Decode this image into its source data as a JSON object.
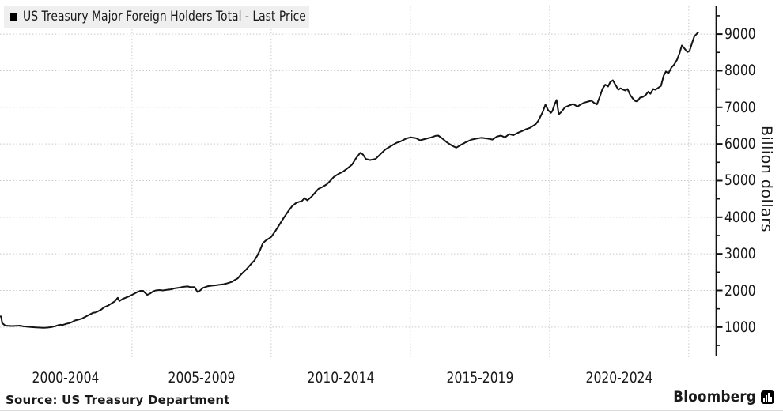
{
  "legend": {
    "label": "US Treasury Major Foreign Holders Total - Last Price",
    "swatch_color": "#000000"
  },
  "y_axis": {
    "title": "Billion dollars"
  },
  "footer": {
    "source": "Source: US Treasury Department",
    "brand": "Bloomberg"
  },
  "colors": {
    "line": "#141414",
    "grid": "#c8c8c8",
    "axis": "#111111",
    "legend_bg": "#efefef",
    "text": "#1a1a1a",
    "background": "#ffffff"
  },
  "chart_data": {
    "type": "line",
    "title": "US Treasury Major Foreign Holders Total - Last Price",
    "ylabel": "Billion dollars",
    "xlabel": "",
    "legend_position": "top-left",
    "grid": true,
    "xlim": [
      2000.26,
      2025.97
    ],
    "ylim": [
      220,
      9930
    ],
    "y_major_ticks": [
      1000,
      2000,
      3000,
      4000,
      5000,
      6000,
      7000,
      8000,
      9000
    ],
    "y_minor_ticks": [
      500,
      1500,
      2500,
      3500,
      4500,
      5500,
      6500,
      7500,
      8500,
      9500
    ],
    "x_gridline_years": [
      2005,
      2010,
      2015,
      2020,
      2025
    ],
    "x_tick_labels": [
      {
        "label": "2000-2004",
        "year": 2002.63
      },
      {
        "label": "2005-2009",
        "year": 2007.5
      },
      {
        "label": "2010-2014",
        "year": 2012.5
      },
      {
        "label": "2015-2019",
        "year": 2017.5
      },
      {
        "label": "2020-2024",
        "year": 2022.5
      }
    ],
    "series": [
      {
        "name": "US Treasury Major Foreign Holders Total - Last Price",
        "color": "#141414",
        "x": [
          2000.26,
          2000.3,
          2000.34,
          2000.45,
          2000.7,
          2000.97,
          2001.1,
          2001.25,
          2001.4,
          2001.55,
          2001.7,
          2001.82,
          2001.95,
          2002.1,
          2002.24,
          2002.35,
          2002.44,
          2002.5,
          2002.64,
          2002.75,
          2002.85,
          2002.95,
          2003.1,
          2003.2,
          2003.3,
          2003.4,
          2003.5,
          2003.6,
          2003.7,
          2003.8,
          2003.9,
          2004.0,
          2004.15,
          2004.25,
          2004.38,
          2004.49,
          2004.55,
          2004.65,
          2004.8,
          2004.9,
          2005.0,
          2005.1,
          2005.2,
          2005.3,
          2005.4,
          2005.55,
          2005.65,
          2005.75,
          2005.85,
          2006.0,
          2006.1,
          2006.25,
          2006.4,
          2006.55,
          2006.7,
          2006.85,
          2007.0,
          2007.1,
          2007.25,
          2007.35,
          2007.45,
          2007.55,
          2007.7,
          2007.85,
          2008.0,
          2008.15,
          2008.3,
          2008.45,
          2008.6,
          2008.7,
          2008.8,
          2008.9,
          2009.0,
          2009.1,
          2009.25,
          2009.4,
          2009.5,
          2009.6,
          2009.7,
          2009.8,
          2009.9,
          2010.0,
          2010.15,
          2010.3,
          2010.45,
          2010.6,
          2010.75,
          2010.9,
          2011.0,
          2011.1,
          2011.2,
          2011.3,
          2011.45,
          2011.6,
          2011.7,
          2011.85,
          2012.0,
          2012.1,
          2012.25,
          2012.4,
          2012.6,
          2012.75,
          2012.9,
          2013.05,
          2013.2,
          2013.3,
          2013.4,
          2013.55,
          2013.75,
          2013.95,
          2014.1,
          2014.3,
          2014.5,
          2014.65,
          2014.85,
          2015.0,
          2015.2,
          2015.35,
          2015.55,
          2015.75,
          2015.9,
          2016.0,
          2016.15,
          2016.3,
          2016.5,
          2016.65,
          2016.85,
          2017.0,
          2017.2,
          2017.4,
          2017.55,
          2017.75,
          2017.95,
          2018.1,
          2018.25,
          2018.4,
          2018.55,
          2018.7,
          2018.85,
          2019.0,
          2019.15,
          2019.3,
          2019.5,
          2019.6,
          2019.75,
          2019.85,
          2019.95,
          2020.05,
          2020.1,
          2020.18,
          2020.25,
          2020.33,
          2020.42,
          2020.55,
          2020.7,
          2020.85,
          2021.0,
          2021.1,
          2021.25,
          2021.4,
          2021.5,
          2021.6,
          2021.7,
          2021.8,
          2021.9,
          2022.0,
          2022.1,
          2022.18,
          2022.27,
          2022.38,
          2022.47,
          2022.55,
          2022.65,
          2022.72,
          2022.8,
          2022.9,
          2023.0,
          2023.08,
          2023.15,
          2023.25,
          2023.35,
          2023.45,
          2023.55,
          2023.62,
          2023.72,
          2023.8,
          2023.9,
          2024.0,
          2024.1,
          2024.18,
          2024.27,
          2024.38,
          2024.47,
          2024.58,
          2024.67,
          2024.75,
          2024.83,
          2024.95,
          2025.03,
          2025.12,
          2025.2,
          2025.28,
          2025.34
        ],
        "values": [
          1290,
          1290,
          1110,
          1040,
          1030,
          1040,
          1020,
          1010,
          1000,
          990,
          985,
          980,
          985,
          1000,
          1025,
          1050,
          1065,
          1055,
          1090,
          1110,
          1140,
          1180,
          1210,
          1230,
          1270,
          1310,
          1350,
          1390,
          1400,
          1440,
          1480,
          1540,
          1590,
          1640,
          1700,
          1800,
          1710,
          1760,
          1810,
          1840,
          1880,
          1920,
          1960,
          1990,
          1990,
          1880,
          1915,
          1970,
          2000,
          2010,
          2000,
          2015,
          2030,
          2060,
          2075,
          2100,
          2110,
          2090,
          2090,
          1960,
          2000,
          2070,
          2110,
          2130,
          2140,
          2155,
          2170,
          2200,
          2240,
          2290,
          2330,
          2420,
          2500,
          2570,
          2700,
          2820,
          2950,
          3100,
          3290,
          3360,
          3410,
          3460,
          3620,
          3800,
          3980,
          4150,
          4300,
          4390,
          4420,
          4440,
          4520,
          4460,
          4560,
          4690,
          4775,
          4830,
          4900,
          4975,
          5100,
          5175,
          5255,
          5340,
          5430,
          5610,
          5760,
          5710,
          5590,
          5560,
          5590,
          5740,
          5850,
          5940,
          6030,
          6070,
          6150,
          6180,
          6160,
          6100,
          6140,
          6180,
          6220,
          6230,
          6150,
          6050,
          5950,
          5900,
          5990,
          6050,
          6120,
          6150,
          6170,
          6150,
          6120,
          6200,
          6230,
          6180,
          6270,
          6240,
          6300,
          6350,
          6400,
          6440,
          6540,
          6640,
          6870,
          7070,
          6920,
          6850,
          6900,
          7080,
          7200,
          6810,
          6870,
          7000,
          7050,
          7090,
          7020,
          7070,
          7130,
          7160,
          7180,
          7120,
          7080,
          7280,
          7500,
          7620,
          7570,
          7690,
          7740,
          7600,
          7480,
          7520,
          7480,
          7460,
          7500,
          7335,
          7230,
          7170,
          7160,
          7265,
          7285,
          7335,
          7430,
          7370,
          7500,
          7480,
          7530,
          7585,
          7870,
          7980,
          7930,
          8090,
          8160,
          8300,
          8480,
          8690,
          8620,
          8510,
          8545,
          8760,
          8940,
          9000,
          9050
        ]
      }
    ]
  }
}
